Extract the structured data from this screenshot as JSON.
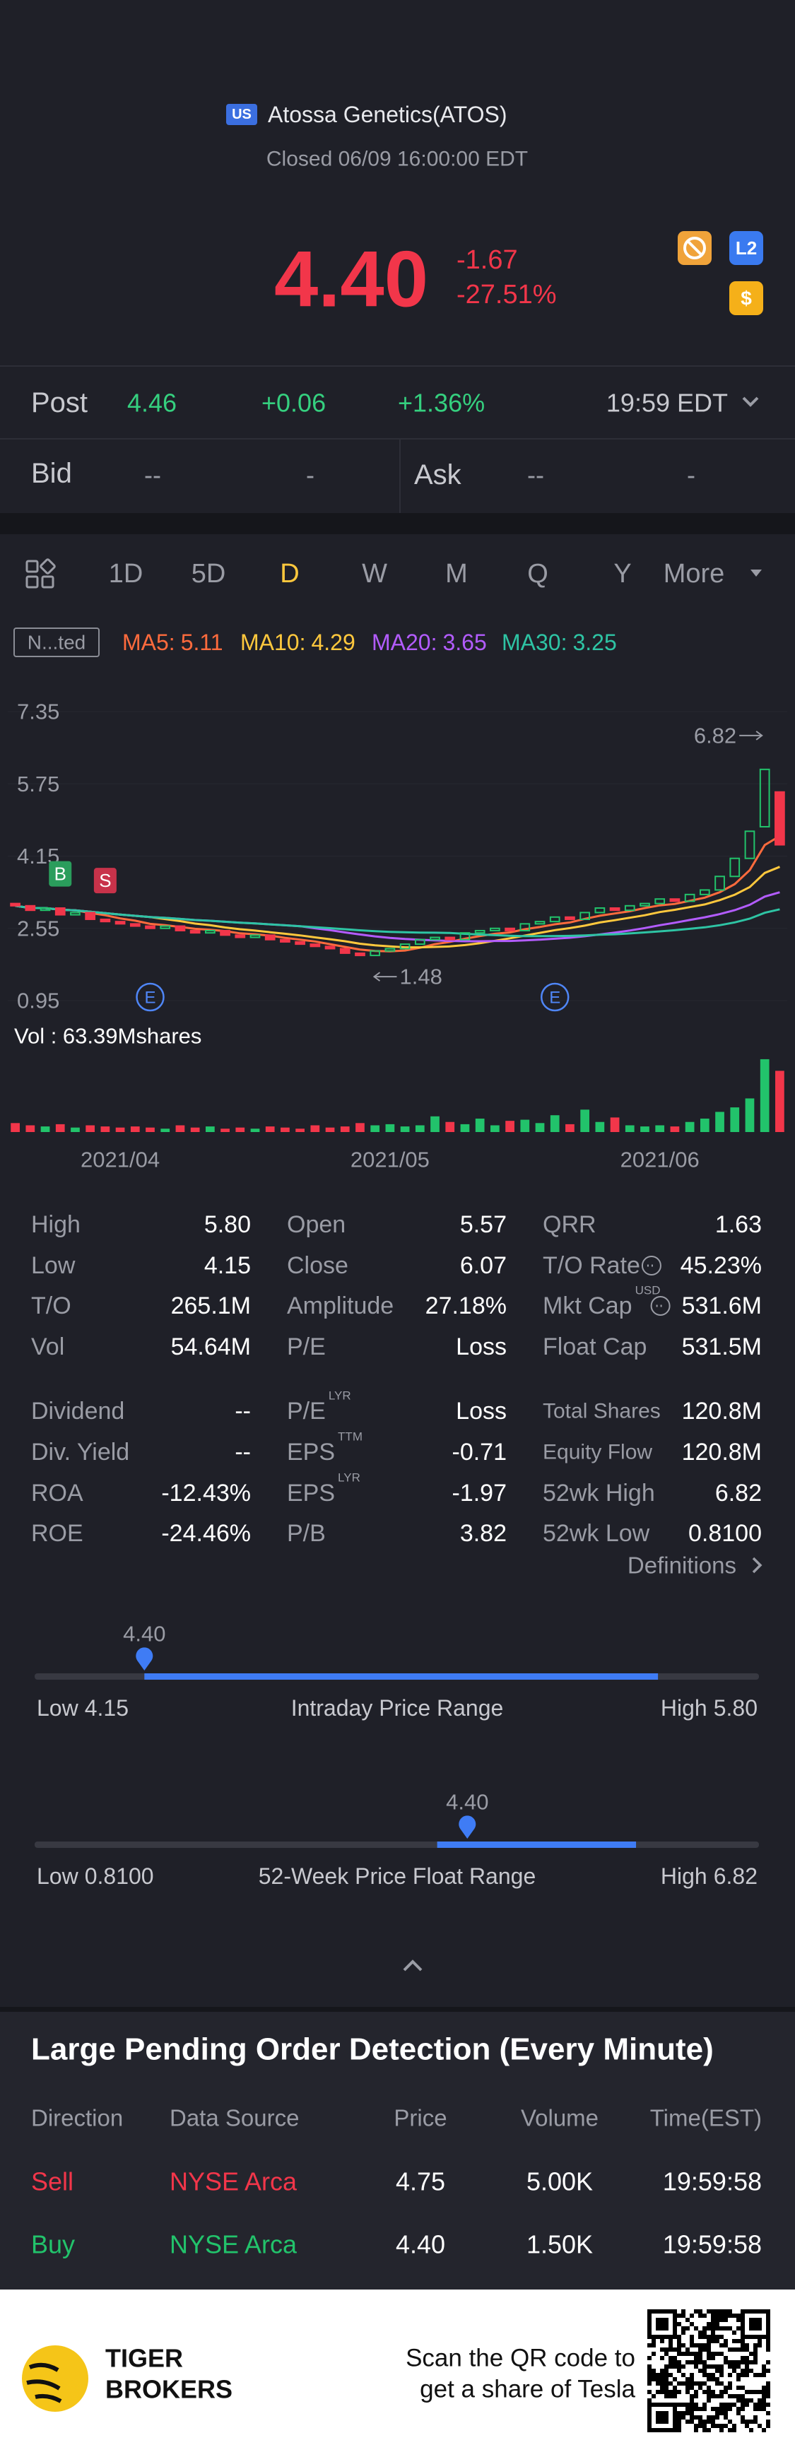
{
  "header": {
    "badge": "US",
    "name": "Atossa Genetics(ATOS)",
    "status": "Closed 06/09 16:00:00 EDT",
    "price": "4.40",
    "change": "-1.67",
    "change_pct": "-27.51%",
    "icon_l2": "L2",
    "icon_dollar": "$"
  },
  "quote": {
    "post_label": "Post",
    "post_price": "4.46",
    "post_change": "+0.06",
    "post_pct": "+1.36%",
    "post_time": "19:59 EDT",
    "bid_label": "Bid",
    "bid_price": "--",
    "bid_size": "-",
    "ask_label": "Ask",
    "ask_price": "--",
    "ask_size": "-"
  },
  "tabs": {
    "items": [
      "1D",
      "5D",
      "D",
      "W",
      "M",
      "Q",
      "Y",
      "More"
    ],
    "active": "D"
  },
  "indicators": {
    "badge": "N...ted",
    "ma": [
      {
        "label": "MA5:",
        "value": "5.11",
        "color": "#ff6b3d"
      },
      {
        "label": "MA10:",
        "value": "4.29",
        "color": "#ffc83d"
      },
      {
        "label": "MA20:",
        "value": "3.65",
        "color": "#b35cff"
      },
      {
        "label": "MA30:",
        "value": "3.25",
        "color": "#2ec4a4"
      }
    ]
  },
  "chart": {
    "type": "candlestick",
    "yticks": [
      7.35,
      5.75,
      4.15,
      2.55,
      0.95
    ],
    "ylim": [
      0.95,
      7.35
    ],
    "x": [
      null,
      null,
      null,
      null,
      null,
      null,
      null,
      "2021/04",
      null,
      null,
      null,
      null,
      null,
      null,
      null,
      null,
      null,
      null,
      null,
      null,
      null,
      null,
      null,
      null,
      null,
      "2021/05",
      null,
      null,
      null,
      null,
      null,
      null,
      null,
      null,
      null,
      null,
      null,
      null,
      null,
      null,
      null,
      null,
      null,
      "2021/06",
      null,
      null,
      null,
      null,
      null,
      null,
      null,
      null
    ],
    "open": [
      3.1,
      3.05,
      2.95,
      3.0,
      2.85,
      2.9,
      2.75,
      2.7,
      2.65,
      2.6,
      2.55,
      2.6,
      2.5,
      2.45,
      2.5,
      2.4,
      2.35,
      2.4,
      2.3,
      2.25,
      2.2,
      2.15,
      2.1,
      2.0,
      1.95,
      2.05,
      2.1,
      2.2,
      2.3,
      2.35,
      2.3,
      2.45,
      2.5,
      2.55,
      2.5,
      2.65,
      2.7,
      2.8,
      2.75,
      2.9,
      3.0,
      2.95,
      3.05,
      3.1,
      3.2,
      3.15,
      3.3,
      3.4,
      3.7,
      4.1,
      4.8,
      5.57
    ],
    "close": [
      3.05,
      2.95,
      3.0,
      2.85,
      2.9,
      2.75,
      2.7,
      2.65,
      2.6,
      2.55,
      2.6,
      2.5,
      2.45,
      2.5,
      2.4,
      2.35,
      2.4,
      2.3,
      2.25,
      2.2,
      2.15,
      2.1,
      2.0,
      1.95,
      2.05,
      2.1,
      2.2,
      2.3,
      2.35,
      2.3,
      2.45,
      2.5,
      2.55,
      2.5,
      2.65,
      2.7,
      2.8,
      2.75,
      2.9,
      3.0,
      2.95,
      3.05,
      3.1,
      3.2,
      3.15,
      3.3,
      3.4,
      3.7,
      4.1,
      4.7,
      6.07,
      4.4
    ],
    "volume": [
      8,
      6,
      5,
      7,
      4,
      6,
      5,
      4,
      5,
      4,
      3,
      6,
      4,
      5,
      3,
      4,
      3,
      5,
      4,
      3,
      6,
      4,
      5,
      8,
      6,
      7,
      5,
      6,
      14,
      9,
      7,
      12,
      6,
      10,
      11,
      8,
      15,
      7,
      20,
      9,
      13,
      6,
      5,
      6,
      5,
      9,
      12,
      18,
      22,
      30,
      65,
      54.64
    ],
    "volume_lim": [
      0,
      70
    ],
    "markers": [
      null,
      null,
      null,
      "B",
      null,
      null,
      "S",
      null,
      null,
      "E",
      null,
      null,
      null,
      null,
      null,
      null,
      null,
      null,
      null,
      null,
      null,
      null,
      null,
      null,
      null,
      null,
      null,
      null,
      null,
      null,
      null,
      null,
      null,
      null,
      null,
      null,
      "E",
      null,
      null,
      null,
      null,
      null,
      null,
      null,
      null,
      null,
      null,
      null,
      null,
      null,
      null,
      null
    ],
    "high_mark": 6.82,
    "low_mark": 1.48,
    "volume_label": "Vol : 63.39Mshares",
    "up_color": "#22c36b",
    "down_color": "#f2364a"
  },
  "stats": {
    "rows": [
      [
        {
          "label": "High",
          "value": "5.80"
        },
        {
          "label": "Open",
          "value": "5.57"
        },
        {
          "label": "QRR",
          "value": "1.63"
        }
      ],
      [
        {
          "label": "Low",
          "value": "4.15"
        },
        {
          "label": "Close",
          "value": "6.07"
        },
        {
          "label": "T/O Rate",
          "value": "45.23%",
          "info": true
        }
      ],
      [
        {
          "label": "T/O",
          "value": "265.1M"
        },
        {
          "label": "Amplitude",
          "value": "27.18%"
        },
        {
          "label": "Mkt Cap",
          "value": "531.6M",
          "sup": "USD",
          "info": true
        }
      ],
      [
        {
          "label": "Vol",
          "value": "54.64M"
        },
        {
          "label": "P/E",
          "value": "Loss"
        },
        {
          "label": "Float Cap",
          "value": "531.5M"
        }
      ],
      [
        {
          "label": "Dividend",
          "value": "--"
        },
        {
          "label": "P/E",
          "value": "Loss",
          "sup": "LYR"
        },
        {
          "label": "Total Shares",
          "value": "120.8M"
        }
      ],
      [
        {
          "label": "Div. Yield",
          "value": "--"
        },
        {
          "label": "EPS",
          "value": "-0.71",
          "sup": "TTM"
        },
        {
          "label": "Equity Flow",
          "value": "120.8M"
        }
      ],
      [
        {
          "label": "ROA",
          "value": "-12.43%"
        },
        {
          "label": "EPS",
          "value": "-1.97",
          "sup": "LYR"
        },
        {
          "label": "52wk High",
          "value": "6.82"
        }
      ],
      [
        {
          "label": "ROE",
          "value": "-24.46%"
        },
        {
          "label": "P/B",
          "value": "3.82"
        },
        {
          "label": "52wk Low",
          "value": "0.8100"
        }
      ]
    ],
    "definitions": "Definitions"
  },
  "ranges": [
    {
      "price": {
        "value": 4.4,
        "label": "4.40"
      },
      "low_label": "Low",
      "low": 4.15,
      "title": "Intraday Price Range",
      "high_label": "High",
      "high": {
        "value": 5.8,
        "label": "5.80"
      }
    },
    {
      "price": {
        "value": 4.4,
        "label": "4.40"
      },
      "low_label": "Low",
      "low": {
        "value": 0.81,
        "label": "0.8100"
      },
      "title": "52-Week Price Float Range",
      "high_label": "High",
      "high": 6.82
    }
  ],
  "orders": {
    "title": "Large Pending Order Detection (Every Minute)",
    "headers": [
      "Direction",
      "Data Source",
      "Price",
      "Volume",
      "Time(EST)"
    ],
    "rows": [
      [
        "Sell",
        "NYSE Arca",
        "4.75",
        "5.00K",
        "19:59:58"
      ],
      [
        "Buy",
        "NYSE Arca",
        "4.40",
        "1.50K",
        "19:59:58"
      ]
    ],
    "row_colors": [
      "#f2364a",
      "#22c36b"
    ]
  },
  "banner": {
    "brand": [
      "TIGER",
      "BROKERS"
    ],
    "cta": [
      "Scan the QR code to",
      "get a share of Tesla"
    ]
  }
}
